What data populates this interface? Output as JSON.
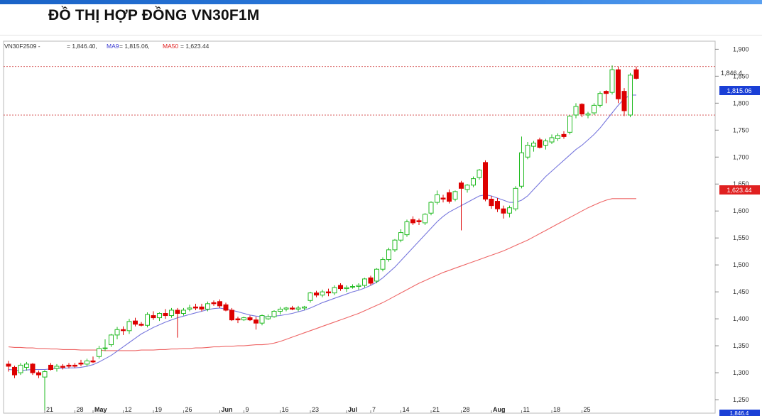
{
  "page": {
    "title": "ĐỒ THỊ HỢP ĐỒNG VN30F1M"
  },
  "legend": {
    "symbol": "VN30F2509 -",
    "last_label": "= 1,846.40,",
    "ma9_name": "MA9",
    "ma9_value": "= 1,815.06,",
    "ma50_name": "MA50",
    "ma50_value": "= 1,623.44"
  },
  "colors": {
    "up": "#22bb22",
    "down": "#dd0000",
    "ma9": "#7777dd",
    "ma50": "#ee6666",
    "ma9_tag": "#1a3fd6",
    "ma50_tag": "#e02020",
    "last_tag": "#1a3fd6"
  },
  "price_tags": {
    "last": "1,846.4",
    "ma9": "1,815.06",
    "ma50": "1,623.44",
    "bottom": "1,846.4"
  },
  "reference_lines": [
    1868,
    1778
  ],
  "chart_data": {
    "type": "candlestick",
    "ylim": [
      1225,
      1915
    ],
    "y_ticks": [
      1900,
      1850,
      1800,
      1750,
      1700,
      1650,
      1600,
      1550,
      1500,
      1450,
      1400,
      1350,
      1300,
      1250
    ],
    "y_tick_labels": [
      "1,900",
      "1,850",
      "1,800",
      "1,750",
      "1,700",
      "1,650",
      "1,600",
      "1,550",
      "1,500",
      "1,450",
      "1,400",
      "1,350",
      "1,300",
      "1,250"
    ],
    "x_ticks": [
      {
        "i": 6,
        "label": "21"
      },
      {
        "i": 11,
        "label": "28"
      },
      {
        "i": 14,
        "label": "May"
      },
      {
        "i": 19,
        "label": "12"
      },
      {
        "i": 24,
        "label": "19"
      },
      {
        "i": 29,
        "label": "26"
      },
      {
        "i": 35,
        "label": "Jun"
      },
      {
        "i": 39,
        "label": "9"
      },
      {
        "i": 45,
        "label": "16"
      },
      {
        "i": 50,
        "label": "23"
      },
      {
        "i": 56,
        "label": "Jul"
      },
      {
        "i": 60,
        "label": "7"
      },
      {
        "i": 65,
        "label": "14"
      },
      {
        "i": 70,
        "label": "21"
      },
      {
        "i": 75,
        "label": "28"
      },
      {
        "i": 80,
        "label": "Aug"
      },
      {
        "i": 85,
        "label": "11"
      },
      {
        "i": 90,
        "label": "18"
      },
      {
        "i": 95,
        "label": "25"
      }
    ],
    "candles": [
      {
        "o": 1316,
        "h": 1322,
        "l": 1302,
        "c": 1312
      },
      {
        "o": 1310,
        "h": 1313,
        "l": 1290,
        "c": 1296
      },
      {
        "o": 1300,
        "h": 1318,
        "l": 1296,
        "c": 1314
      },
      {
        "o": 1310,
        "h": 1320,
        "l": 1304,
        "c": 1316
      },
      {
        "o": 1316,
        "h": 1318,
        "l": 1296,
        "c": 1300
      },
      {
        "o": 1300,
        "h": 1304,
        "l": 1290,
        "c": 1296
      },
      {
        "o": 1292,
        "h": 1305,
        "l": 1230,
        "c": 1302
      },
      {
        "o": 1314,
        "h": 1318,
        "l": 1304,
        "c": 1306
      },
      {
        "o": 1308,
        "h": 1316,
        "l": 1302,
        "c": 1312
      },
      {
        "o": 1312,
        "h": 1316,
        "l": 1306,
        "c": 1310
      },
      {
        "o": 1314,
        "h": 1318,
        "l": 1308,
        "c": 1312
      },
      {
        "o": 1314,
        "h": 1318,
        "l": 1309,
        "c": 1312
      },
      {
        "o": 1318,
        "h": 1324,
        "l": 1312,
        "c": 1316
      },
      {
        "o": 1316,
        "h": 1326,
        "l": 1312,
        "c": 1322
      },
      {
        "o": 1322,
        "h": 1330,
        "l": 1318,
        "c": 1320
      },
      {
        "o": 1330,
        "h": 1350,
        "l": 1326,
        "c": 1345
      },
      {
        "o": 1345,
        "h": 1362,
        "l": 1340,
        "c": 1346
      },
      {
        "o": 1352,
        "h": 1372,
        "l": 1348,
        "c": 1370
      },
      {
        "o": 1370,
        "h": 1385,
        "l": 1362,
        "c": 1380
      },
      {
        "o": 1380,
        "h": 1386,
        "l": 1370,
        "c": 1378
      },
      {
        "o": 1378,
        "h": 1400,
        "l": 1372,
        "c": 1395
      },
      {
        "o": 1396,
        "h": 1402,
        "l": 1386,
        "c": 1390
      },
      {
        "o": 1390,
        "h": 1394,
        "l": 1386,
        "c": 1388
      },
      {
        "o": 1388,
        "h": 1412,
        "l": 1384,
        "c": 1408
      },
      {
        "o": 1406,
        "h": 1414,
        "l": 1398,
        "c": 1402
      },
      {
        "o": 1402,
        "h": 1412,
        "l": 1396,
        "c": 1410
      },
      {
        "o": 1410,
        "h": 1418,
        "l": 1400,
        "c": 1406
      },
      {
        "o": 1406,
        "h": 1420,
        "l": 1402,
        "c": 1416
      },
      {
        "o": 1416,
        "h": 1420,
        "l": 1365,
        "c": 1410
      },
      {
        "o": 1410,
        "h": 1420,
        "l": 1406,
        "c": 1416
      },
      {
        "o": 1418,
        "h": 1426,
        "l": 1414,
        "c": 1420
      },
      {
        "o": 1422,
        "h": 1428,
        "l": 1416,
        "c": 1420
      },
      {
        "o": 1422,
        "h": 1428,
        "l": 1414,
        "c": 1418
      },
      {
        "o": 1418,
        "h": 1432,
        "l": 1414,
        "c": 1428
      },
      {
        "o": 1430,
        "h": 1434,
        "l": 1424,
        "c": 1428
      },
      {
        "o": 1432,
        "h": 1436,
        "l": 1420,
        "c": 1424
      },
      {
        "o": 1426,
        "h": 1430,
        "l": 1414,
        "c": 1416
      },
      {
        "o": 1416,
        "h": 1420,
        "l": 1396,
        "c": 1398
      },
      {
        "o": 1400,
        "h": 1404,
        "l": 1392,
        "c": 1398
      },
      {
        "o": 1398,
        "h": 1404,
        "l": 1396,
        "c": 1402
      },
      {
        "o": 1402,
        "h": 1406,
        "l": 1396,
        "c": 1398
      },
      {
        "o": 1398,
        "h": 1404,
        "l": 1380,
        "c": 1392
      },
      {
        "o": 1392,
        "h": 1408,
        "l": 1388,
        "c": 1406
      },
      {
        "o": 1400,
        "h": 1408,
        "l": 1398,
        "c": 1404
      },
      {
        "o": 1404,
        "h": 1416,
        "l": 1402,
        "c": 1414
      },
      {
        "o": 1414,
        "h": 1422,
        "l": 1408,
        "c": 1418
      },
      {
        "o": 1418,
        "h": 1422,
        "l": 1414,
        "c": 1420
      },
      {
        "o": 1420,
        "h": 1424,
        "l": 1416,
        "c": 1418
      },
      {
        "o": 1418,
        "h": 1424,
        "l": 1414,
        "c": 1420
      },
      {
        "o": 1420,
        "h": 1424,
        "l": 1416,
        "c": 1422
      },
      {
        "o": 1434,
        "h": 1450,
        "l": 1430,
        "c": 1448
      },
      {
        "o": 1448,
        "h": 1452,
        "l": 1440,
        "c": 1444
      },
      {
        "o": 1444,
        "h": 1454,
        "l": 1440,
        "c": 1450
      },
      {
        "o": 1450,
        "h": 1456,
        "l": 1442,
        "c": 1448
      },
      {
        "o": 1448,
        "h": 1462,
        "l": 1444,
        "c": 1458
      },
      {
        "o": 1462,
        "h": 1466,
        "l": 1452,
        "c": 1456
      },
      {
        "o": 1456,
        "h": 1462,
        "l": 1450,
        "c": 1458
      },
      {
        "o": 1460,
        "h": 1464,
        "l": 1456,
        "c": 1460
      },
      {
        "o": 1460,
        "h": 1466,
        "l": 1454,
        "c": 1462
      },
      {
        "o": 1462,
        "h": 1476,
        "l": 1458,
        "c": 1474
      },
      {
        "o": 1476,
        "h": 1480,
        "l": 1462,
        "c": 1466
      },
      {
        "o": 1470,
        "h": 1494,
        "l": 1466,
        "c": 1492
      },
      {
        "o": 1492,
        "h": 1514,
        "l": 1488,
        "c": 1510
      },
      {
        "o": 1510,
        "h": 1532,
        "l": 1506,
        "c": 1528
      },
      {
        "o": 1528,
        "h": 1548,
        "l": 1524,
        "c": 1546
      },
      {
        "o": 1546,
        "h": 1566,
        "l": 1542,
        "c": 1560
      },
      {
        "o": 1556,
        "h": 1584,
        "l": 1552,
        "c": 1580
      },
      {
        "o": 1584,
        "h": 1590,
        "l": 1574,
        "c": 1578
      },
      {
        "o": 1582,
        "h": 1586,
        "l": 1574,
        "c": 1580
      },
      {
        "o": 1578,
        "h": 1596,
        "l": 1574,
        "c": 1594
      },
      {
        "o": 1596,
        "h": 1618,
        "l": 1592,
        "c": 1616
      },
      {
        "o": 1616,
        "h": 1638,
        "l": 1612,
        "c": 1630
      },
      {
        "o": 1624,
        "h": 1630,
        "l": 1616,
        "c": 1622
      },
      {
        "o": 1634,
        "h": 1640,
        "l": 1614,
        "c": 1618
      },
      {
        "o": 1622,
        "h": 1638,
        "l": 1618,
        "c": 1636
      },
      {
        "o": 1652,
        "h": 1656,
        "l": 1564,
        "c": 1642
      },
      {
        "o": 1640,
        "h": 1650,
        "l": 1634,
        "c": 1648
      },
      {
        "o": 1648,
        "h": 1664,
        "l": 1644,
        "c": 1660
      },
      {
        "o": 1662,
        "h": 1678,
        "l": 1658,
        "c": 1676
      },
      {
        "o": 1690,
        "h": 1694,
        "l": 1618,
        "c": 1622
      },
      {
        "o": 1622,
        "h": 1628,
        "l": 1604,
        "c": 1610
      },
      {
        "o": 1618,
        "h": 1624,
        "l": 1598,
        "c": 1604
      },
      {
        "o": 1604,
        "h": 1610,
        "l": 1586,
        "c": 1596
      },
      {
        "o": 1596,
        "h": 1610,
        "l": 1588,
        "c": 1606
      },
      {
        "o": 1604,
        "h": 1646,
        "l": 1600,
        "c": 1642
      },
      {
        "o": 1646,
        "h": 1738,
        "l": 1642,
        "c": 1708
      },
      {
        "o": 1700,
        "h": 1728,
        "l": 1696,
        "c": 1722
      },
      {
        "o": 1720,
        "h": 1730,
        "l": 1710,
        "c": 1726
      },
      {
        "o": 1732,
        "h": 1736,
        "l": 1716,
        "c": 1718
      },
      {
        "o": 1722,
        "h": 1734,
        "l": 1714,
        "c": 1730
      },
      {
        "o": 1728,
        "h": 1742,
        "l": 1724,
        "c": 1736
      },
      {
        "o": 1734,
        "h": 1744,
        "l": 1730,
        "c": 1740
      },
      {
        "o": 1742,
        "h": 1748,
        "l": 1734,
        "c": 1738
      },
      {
        "o": 1746,
        "h": 1778,
        "l": 1742,
        "c": 1776
      },
      {
        "o": 1778,
        "h": 1800,
        "l": 1772,
        "c": 1794
      },
      {
        "o": 1798,
        "h": 1800,
        "l": 1774,
        "c": 1780
      },
      {
        "o": 1778,
        "h": 1784,
        "l": 1772,
        "c": 1780
      },
      {
        "o": 1782,
        "h": 1800,
        "l": 1778,
        "c": 1796
      },
      {
        "o": 1796,
        "h": 1822,
        "l": 1792,
        "c": 1818
      },
      {
        "o": 1822,
        "h": 1824,
        "l": 1800,
        "c": 1818
      },
      {
        "o": 1820,
        "h": 1870,
        "l": 1816,
        "c": 1862
      },
      {
        "o": 1862,
        "h": 1868,
        "l": 1800,
        "c": 1808
      },
      {
        "o": 1822,
        "h": 1828,
        "l": 1776,
        "c": 1786
      },
      {
        "o": 1778,
        "h": 1856,
        "l": 1774,
        "c": 1852
      },
      {
        "o": 1862,
        "h": 1868,
        "l": 1844,
        "c": 1846
      }
    ],
    "ma9": [
      1306,
      1305,
      1304,
      1305,
      1306,
      1306,
      1306,
      1307,
      1308,
      1308,
      1309,
      1309,
      1310,
      1312,
      1315,
      1320,
      1326,
      1332,
      1340,
      1348,
      1356,
      1364,
      1372,
      1378,
      1384,
      1389,
      1394,
      1398,
      1402,
      1405,
      1408,
      1411,
      1414,
      1417,
      1419,
      1420,
      1418,
      1416,
      1413,
      1410,
      1407,
      1405,
      1404,
      1404,
      1405,
      1406,
      1408,
      1410,
      1413,
      1416,
      1420,
      1425,
      1430,
      1434,
      1438,
      1442,
      1446,
      1450,
      1453,
      1457,
      1462,
      1468,
      1476,
      1486,
      1496,
      1508,
      1520,
      1532,
      1544,
      1556,
      1568,
      1580,
      1590,
      1598,
      1604,
      1610,
      1616,
      1622,
      1628,
      1630,
      1628,
      1624,
      1620,
      1616,
      1616,
      1620,
      1628,
      1640,
      1652,
      1664,
      1674,
      1684,
      1694,
      1704,
      1714,
      1722,
      1732,
      1742,
      1754,
      1768,
      1782,
      1796,
      1808,
      1815,
      1815
    ],
    "ma50": [
      1348,
      1347,
      1347,
      1346,
      1346,
      1345,
      1345,
      1344,
      1344,
      1343,
      1343,
      1343,
      1342,
      1342,
      1342,
      1342,
      1341,
      1341,
      1341,
      1341,
      1341,
      1341,
      1342,
      1342,
      1342,
      1343,
      1343,
      1344,
      1344,
      1345,
      1345,
      1346,
      1346,
      1347,
      1348,
      1348,
      1349,
      1349,
      1350,
      1350,
      1351,
      1352,
      1352,
      1353,
      1355,
      1358,
      1362,
      1366,
      1370,
      1374,
      1378,
      1382,
      1386,
      1390,
      1394,
      1398,
      1402,
      1406,
      1410,
      1415,
      1420,
      1425,
      1430,
      1436,
      1442,
      1448,
      1454,
      1460,
      1466,
      1471,
      1476,
      1481,
      1486,
      1490,
      1494,
      1498,
      1502,
      1506,
      1510,
      1514,
      1518,
      1522,
      1526,
      1531,
      1536,
      1541,
      1546,
      1552,
      1558,
      1564,
      1570,
      1576,
      1582,
      1588,
      1594,
      1600,
      1606,
      1611,
      1616,
      1620,
      1623,
      1623,
      1623,
      1623,
      1623
    ]
  }
}
